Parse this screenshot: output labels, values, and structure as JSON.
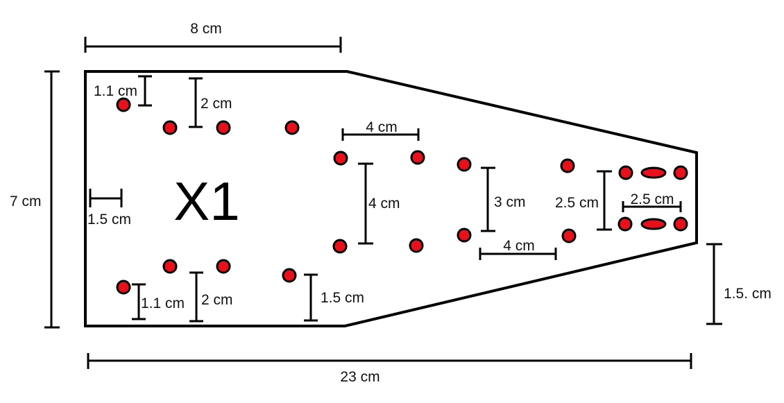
{
  "diagram": {
    "part_label": "X1",
    "colors": {
      "outline": "#000000",
      "hole_fill": "#e8111b",
      "hole_stroke": "#000000"
    },
    "dimensions": {
      "top_width": "8 cm",
      "left_height": "7 cm",
      "bottom_width": "23 cm",
      "right_offset": "1.5. cm",
      "top_corner_v": "1.1 cm",
      "top_row_v": "2 cm",
      "edge_margin": "1.5 cm",
      "bottom_corner_v": "1.1 cm",
      "bottom_row_v": "2 cm",
      "bottom_third_v": "1.5 cm",
      "center_h": "4 cm",
      "center_v": "4 cm",
      "mid_v": "3 cm",
      "mid_h": "4 cm",
      "right_v": "2.5 cm",
      "right_h": "2.5 cm"
    }
  }
}
